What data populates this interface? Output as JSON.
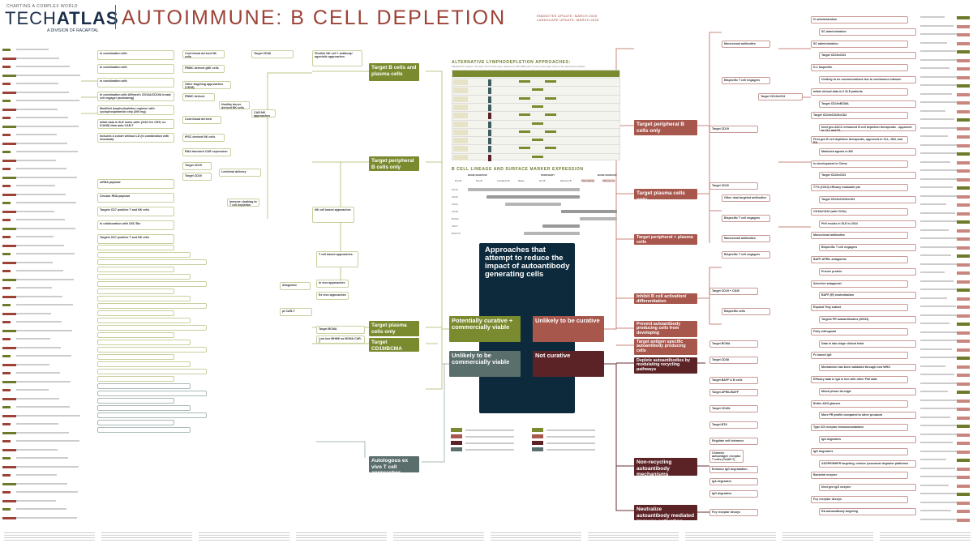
{
  "header": {
    "tagline": "CHARTING A COMPLEX WORLD",
    "logo_light": "TECH",
    "logo_bold": "ATLAS",
    "division": "A DIVISION OF RACAPITAL",
    "title": "AUTOIMMUNE: B CELL DEPLETION",
    "endnotes_update": "ENDNOTES UPDATE: MARCH 2025",
    "landscape_update": "LANDSCAPE UPDATE: MARCH 2025"
  },
  "colors": {
    "green": "#7a8a2e",
    "red": "#a8574d",
    "dark_red": "#5c2327",
    "teal": "#5a6e6c",
    "navy": "#0d2a3d",
    "title_red": "#9c4236"
  },
  "center": {
    "title": "Approaches that attempt to reduce the impact of autoantibody generating cells",
    "categories": [
      {
        "label": "Potentially curative + commercially viable"
      },
      {
        "label": "Unlikely to be curative"
      },
      {
        "label": "Unlikely to be commercially viable"
      },
      {
        "label": "Not curative"
      }
    ]
  },
  "left_nodes": {
    "b_and_plasma": "Target B cells and plasma cells",
    "peripheral": "Target peripheral B cells only",
    "plasma_only": "Target plasma cells only",
    "cd19_bcma": "Target CD19/BCMA",
    "autologous": "Autologous ex vivo T cell approaches"
  },
  "left_boxes": [
    "Flexible NK cell + antibody/ agonistic approaches",
    "NK cell based approaches",
    "T cell based approaches",
    "In vivo approaches",
    "Ex vivo approaches",
    "Allogeneic",
    "Cord blood derived NK cells",
    "PBMC derived gNK cells",
    "Target CD38",
    "Other targeting approaches (CD38)",
    "PBMC derived",
    "Healthy donor derived NK cells",
    "Cord blood derived",
    "iPSC derived NK cells",
    "CAR-NK approaches",
    "RNA transient CAR expression",
    "Target CD19",
    "Target CD20",
    "Lentiviral delivery",
    "Immune cloaking to T cell depletion",
    "pt CAR-T",
    "Target BCMA",
    "Low low MHMK as BCMA CAR-T"
  ],
  "left_items": [
    "In combination with",
    "In combination with",
    "In combination with",
    "In combination with Affimed's CD16A/CD19A innate cell engager (acimtamig)",
    "Modified lymphodepletion regimen with cyclophosphamide only (300 mg)",
    "Initial data in SLE looks safer (2/33 Gr1 CRS; no ICANS) than auto CAR-T",
    "Includes a cohort without LD (in combination with rituximab)",
    "mRNA payload",
    "Circular RNA payload",
    "Targets CD7 positive T and NK cells",
    "In collaboration with USC Bio",
    "Targets CD7 positive T and NK cells"
  ],
  "right_nodes": {
    "peripheral": "Target peripheral B cells only",
    "plasma_only": "Target plasma cells only",
    "peripheral_plasma": "Target peripheral + plasma cells",
    "inhibit": "Inhibit B cell activation/ differentiation",
    "prevent": "Prevent autoantibody producing cells from developing",
    "antigen": "Target antigen specific autoantibody producing cells",
    "deplete": "Deplete autoantibodies by modulating recycling pathways",
    "non_recycling": "Non-recycling autoantibody mechanisms",
    "neutralize": "Neutralize autoantibody mediated immune activation"
  },
  "right_boxes": [
    "Monoclonal antibodies",
    "Target CD19",
    "Bispecific T cell engagers",
    "Target CD19xCD3",
    "Other dual targeted antibodies",
    "Bispecific T cell engagers",
    "Target CD20",
    "Monoclonal antibodies",
    "Bispecific T cell engagers",
    "Target CD19 + CD20",
    "Bispecific cells",
    "Target BCMA",
    "Target CD38",
    "Target BAFF & B cells",
    "Target APRIL/BAFF",
    "Target CD40L",
    "Target BTK",
    "Regulate self tolerance",
    "Chimeric autoantigen receptor T cells (CAAR-T)",
    "Enhance IgG degradation",
    "IgA degraders",
    "IgG degraders",
    "Fcγ receptor decoys"
  ],
  "right_items": [
    "IV administration",
    "SC administration",
    "SC administration",
    "Target CD19xCD3",
    "D-1 bispecific",
    "Unlikely to be commercialized due to continuous infusion",
    "Initial clinical data in 6 SLE patients",
    "Target CD19xBCMA",
    "Target CD19xCD20xCD3",
    "Next gen ADCC enhanced B cell depletion therapeutic - approved in CLL and FL",
    "First gen B cell depletion therapeutic, approved in CLL, NHL and RA",
    "Marketed agents in MS",
    "In development in China",
    "Target CD20xCD3",
    "T7% (10/13) efficacy evaluable pts",
    "Target CD19xCD20xCD3",
    "CD19xCD20 (with CD3ε)",
    "PhII results in SLE in 2024",
    "Monoclonal antibodies",
    "Bispecific T cell engagers",
    "BAFF-APRIL antagonist",
    "Proven protein",
    "Selective antagonist",
    "BAFF-(R) neutralization",
    "Expand Treg subset",
    "Targets PR autoantibodies (DSG3)",
    "Fully orthogonal",
    "Data in late-stage clinical trials",
    "Fc based IgG",
    "Mechanism has been validated through new WHO",
    "Efficacy data in IgA in line with other PhII data",
    "Mixed phase IIa mIgA",
    "Better ADG glasses",
    "More FR profile compared to other products",
    "Type 2/3 receptor immunomodulator",
    "IgA degraders",
    "IgG degraders",
    "ASGPR/MHFR targeting, mimics lysosomal degrader platforms",
    "Bacterial enzyme",
    "Next gen IgG enzyme",
    "Fcγ receptor decoys",
    "RA autoantibody targeting"
  ],
  "table": {
    "title": "ALTERNATIVE LYMPHODEPLETION APPROACHES:",
    "subtitle": "Standard LD regimen: 25 mg/m² Flu for three days, followed by 250-1000mg/m² Cy two to five days, three to five days before infusion"
  },
  "lineage": {
    "title": "B CELL LINEAGE AND SURFACE MARKER EXPRESSION",
    "groups": [
      "BONE MARROW",
      "PERIPHERY",
      "BONE MARROW"
    ],
    "stages": [
      "Pro-B",
      "Pre-B",
      "Immature B",
      "Naive",
      "GC B",
      "Memory B",
      "Plasmablast",
      "Plasma cell"
    ],
    "markers": [
      "CD19",
      "CD20",
      "CD22",
      "CD38",
      "BCMA",
      "CD27",
      "BAFF-R"
    ]
  }
}
